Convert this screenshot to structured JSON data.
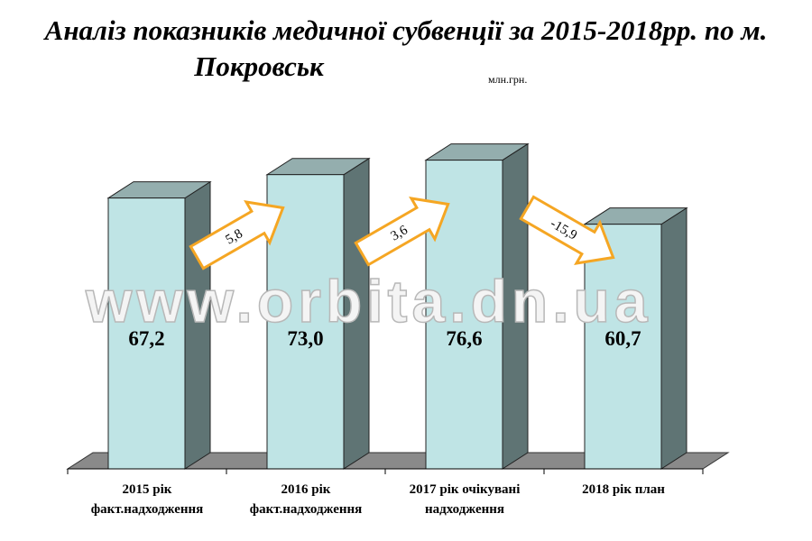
{
  "title_line1": "Аналіз показників медичної субвенції за 2015-2018рр. по м.",
  "title_line2": "Покровськ",
  "unit": "млн.грн.",
  "watermark": "www.orbita.dn.ua",
  "colors": {
    "bar_front": "#bfe4e5",
    "bar_top": "#94aeae",
    "bar_side": "#5f7474",
    "floor": "#8a8a8a",
    "arrow_fill": "#ffffff",
    "arrow_stroke": "#f5a623"
  },
  "chart_data": {
    "type": "bar",
    "categories": [
      "2015 рік факт.надходження",
      "2016 рік факт.надходження",
      "2017 рік очікувані надходження",
      "2018 рік план"
    ],
    "category_lines": [
      [
        "2015 рік",
        "факт.надходження"
      ],
      [
        "2016 рік",
        "факт.надходження"
      ],
      [
        "2017 рік очікувані",
        "надходження"
      ],
      [
        "2018 рік план",
        ""
      ]
    ],
    "values": [
      67.2,
      73.0,
      76.6,
      60.7
    ],
    "value_labels": [
      "67,2",
      "73,0",
      "76,6",
      "60,7"
    ],
    "differences": [
      5.8,
      3.6,
      -15.9
    ],
    "difference_labels": [
      "5,8",
      "3,6",
      "-15,9"
    ],
    "ylim": [
      0,
      80
    ],
    "grid": false,
    "style": "3d-columns",
    "title": "Аналіз показників медичної субвенції за 2015-2018рр. по м. Покровськ",
    "ylabel": "млн.грн."
  }
}
